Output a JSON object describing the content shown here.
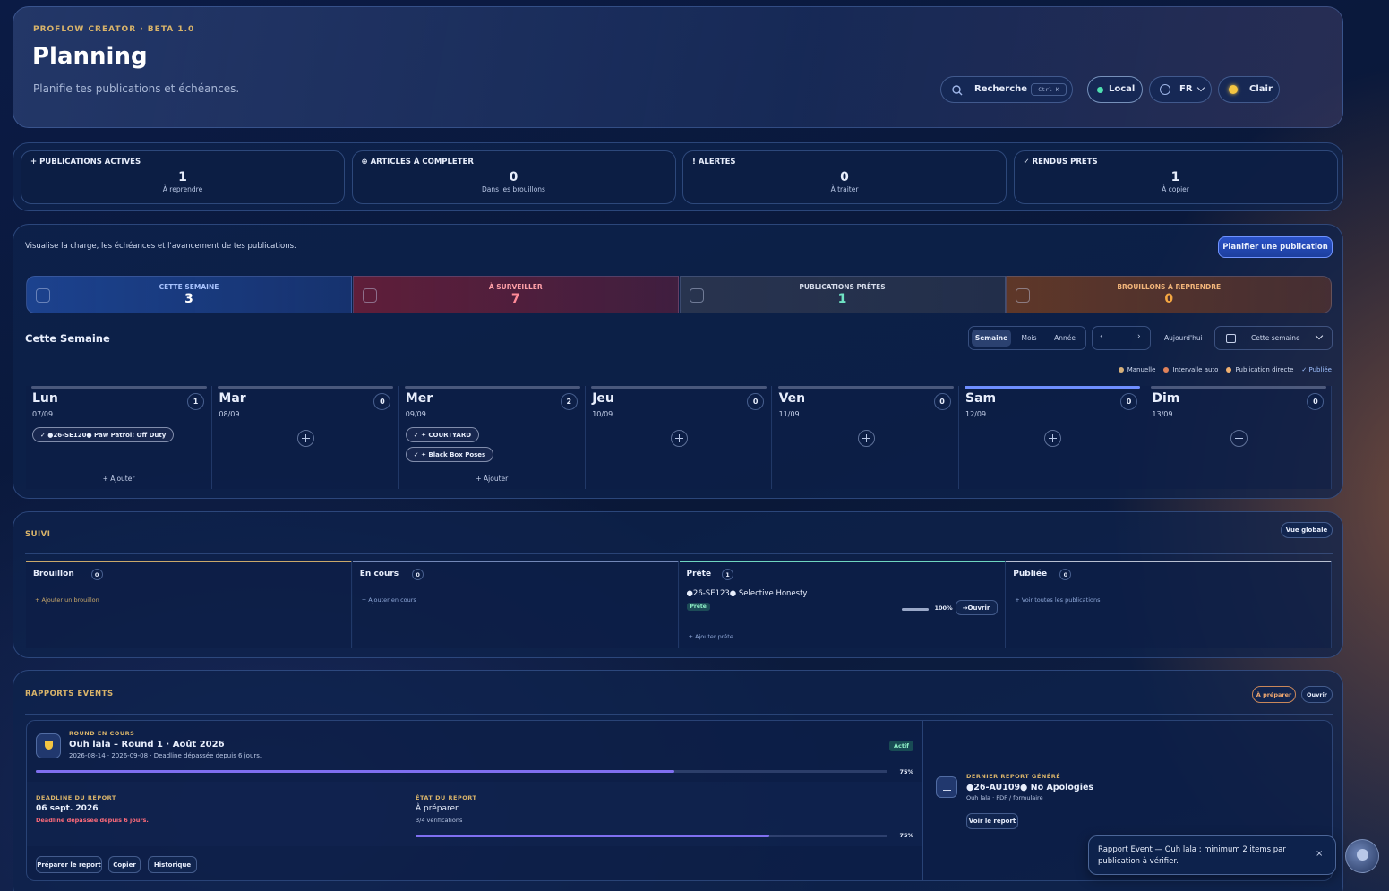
{
  "header": {
    "eyebrow": "PROFLOW CREATOR · BETA 1.0",
    "title": "Planning",
    "subtitle": "Planifie tes publications et échéances.",
    "search": "Recherche",
    "shortcut": "Ctrl K",
    "mode": "Local",
    "language": "FR",
    "theme": "Clair"
  },
  "stats": [
    {
      "label": "+ PUBLICATIONS ACTIVES",
      "value": 1,
      "note": "À reprendre"
    },
    {
      "label": "⊕ ARTICLES À COMPLETER",
      "value": 0,
      "note": "Dans les brouillons"
    },
    {
      "label": "! ALERTES",
      "value": 0,
      "note": "À traiter"
    },
    {
      "label": "✓ RENDUS PRETS",
      "value": 1,
      "note": "À copier"
    }
  ],
  "planning": {
    "intro": "Visualise la charge, les échéances et l'avancement de tes publications.",
    "cta": "Planifier une publication",
    "tiles": [
      {
        "label": "CETTE SEMAINE",
        "value": 3
      },
      {
        "label": "À SURVEILLER",
        "value": 7
      },
      {
        "label": "PUBLICATIONS PRÊTES",
        "value": 1
      },
      {
        "label": "BROUILLONS À REPRENDRE",
        "value": 0
      }
    ],
    "heading": "Cette Semaine",
    "views": [
      "Semaine",
      "Mois",
      "Année"
    ],
    "prev": "‹",
    "next": "›",
    "today": "Aujourd'hui",
    "range": "Cette semaine",
    "legend": [
      "Manuelle",
      "Intervalle auto",
      "Publication directe",
      "✓ Publiée"
    ],
    "days": [
      {
        "name": "Lun",
        "date": "07/09",
        "count": 1,
        "items": [
          "✓ ●26-SE120● Paw Patrol: Off Duty"
        ],
        "add": "+ Ajouter"
      },
      {
        "name": "Mar",
        "date": "08/09",
        "count": 0
      },
      {
        "name": "Mer",
        "date": "09/09",
        "count": 2,
        "items": [
          "✓ ✦ COURTYARD",
          "✓ ✦ Black Box Poses"
        ],
        "add": "+ Ajouter"
      },
      {
        "name": "Jeu",
        "date": "10/09",
        "count": 0
      },
      {
        "name": "Ven",
        "date": "11/09",
        "count": 0
      },
      {
        "name": "Sam",
        "date": "12/09",
        "count": 0
      },
      {
        "name": "Dim",
        "date": "13/09",
        "count": 0
      }
    ]
  },
  "suivi": {
    "title": "SUIVI",
    "action": "Vue globale",
    "columns": [
      {
        "name": "Brouillon",
        "count": 0,
        "add": "+ Ajouter un brouillon"
      },
      {
        "name": "En cours",
        "count": 0,
        "add": "+ Ajouter en cours"
      },
      {
        "name": "Prête",
        "count": 1,
        "items": [
          {
            "title": "●26-SE123● Selective Honesty",
            "status": "Prête",
            "progress": {
              "value": 100,
              "label": "100%"
            },
            "open": "→Ouvrir"
          }
        ],
        "add": "+ Ajouter prête"
      },
      {
        "name": "Publiée",
        "count": 0,
        "add": "+ Voir toutes les publications"
      }
    ]
  },
  "reports": {
    "title": "RAPPORTS EVENTS",
    "status": "À préparer",
    "open": "Ouvrir",
    "round": {
      "eyebrow": "ROUND EN COURS",
      "title": "Ouh lala – Round 1 · Août 2026",
      "dates": "2026-08-14 · 2026-09-08 · Deadline dépassée depuis 6 jours.",
      "badge": "Actif",
      "progress": {
        "value": 75,
        "label": "75%"
      }
    },
    "deadline": {
      "label": "DEADLINE DU REPORT",
      "date": "06 sept. 2026",
      "warning": "Deadline dépassée depuis 6 jours."
    },
    "state": {
      "label": "ÉTAT DU REPORT",
      "value": "À préparer",
      "checks": "3/4 vérifications",
      "progress": {
        "value": 75,
        "label": "75%"
      }
    },
    "actions": [
      "Préparer le report",
      "Copier",
      "Historique"
    ],
    "last": {
      "label": "DERNIER REPORT GÉNÉRÉ",
      "title": "●26-AU109● No Apologies",
      "meta": "Ouh lala · PDF / formulaire",
      "action": "Voir le report"
    }
  },
  "toast": {
    "text": "Rapport Event — Ouh lala : minimum 2 items par publication à vérifier.",
    "close": "×"
  }
}
